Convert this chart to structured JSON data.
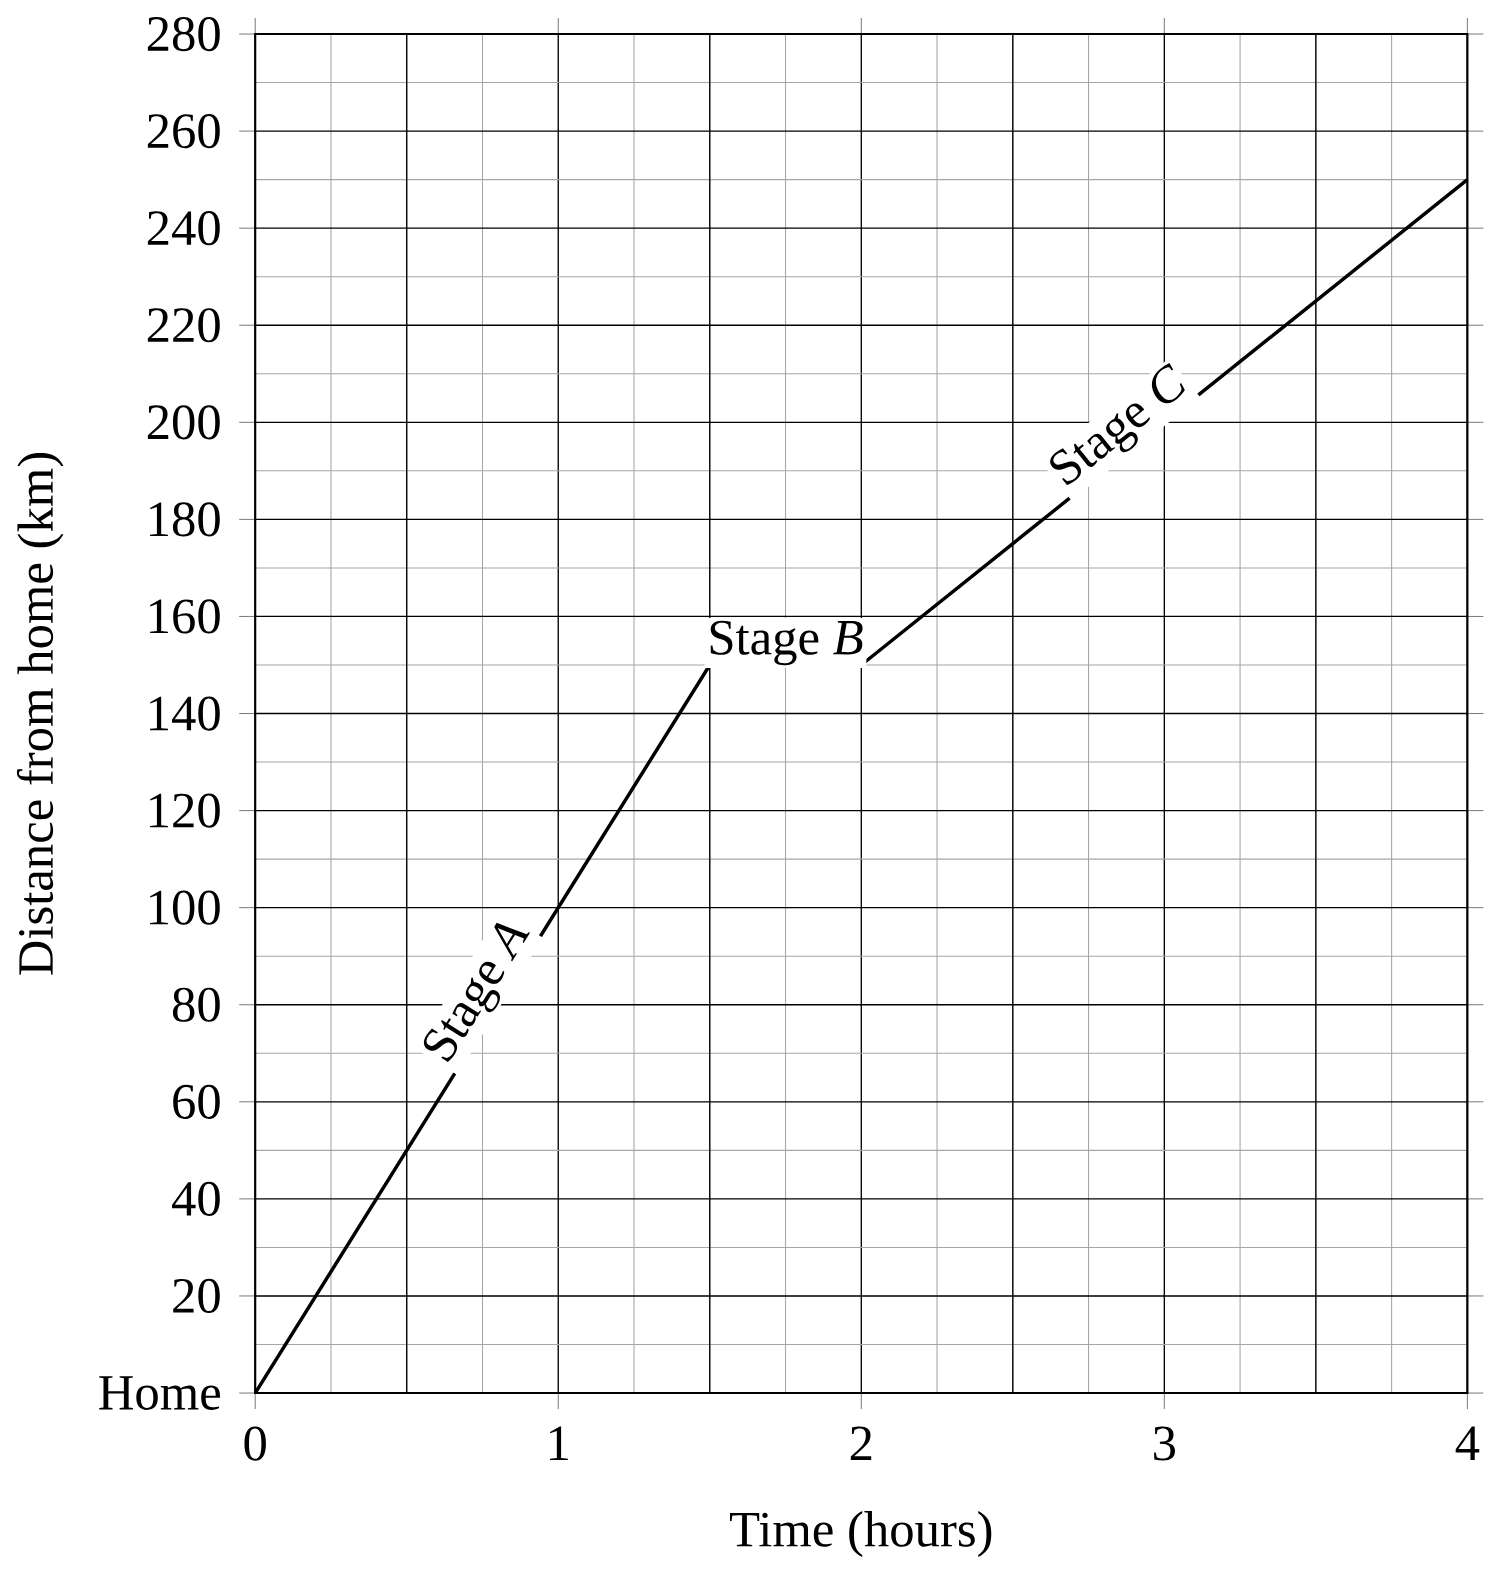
{
  "chart_data": {
    "type": "line",
    "xlabel": "Time (hours)",
    "ylabel": "Distance from home (km)",
    "x": [
      0,
      1.5,
      2,
      4
    ],
    "series": [
      {
        "color": "#000000",
        "values": [
          0,
          150,
          150,
          250
        ]
      }
    ],
    "xlim": [
      0,
      4
    ],
    "ylim": [
      0,
      280
    ],
    "xticks": [
      0,
      1,
      2,
      3,
      4
    ],
    "yticks": [
      {
        "value": 0,
        "label": "Home"
      },
      20,
      40,
      60,
      80,
      100,
      120,
      140,
      160,
      180,
      200,
      220,
      240,
      260,
      280
    ],
    "grid": true,
    "marker": "none",
    "line_style": "solid",
    "annotations": [
      {
        "text": "Stage *A*",
        "x": 0.8,
        "y": 80
      },
      {
        "text": "Stage *B*",
        "x": 1.75,
        "y": 150
      },
      {
        "text": "Stage *C*",
        "x": 2.9,
        "y": 195
      }
    ]
  }
}
